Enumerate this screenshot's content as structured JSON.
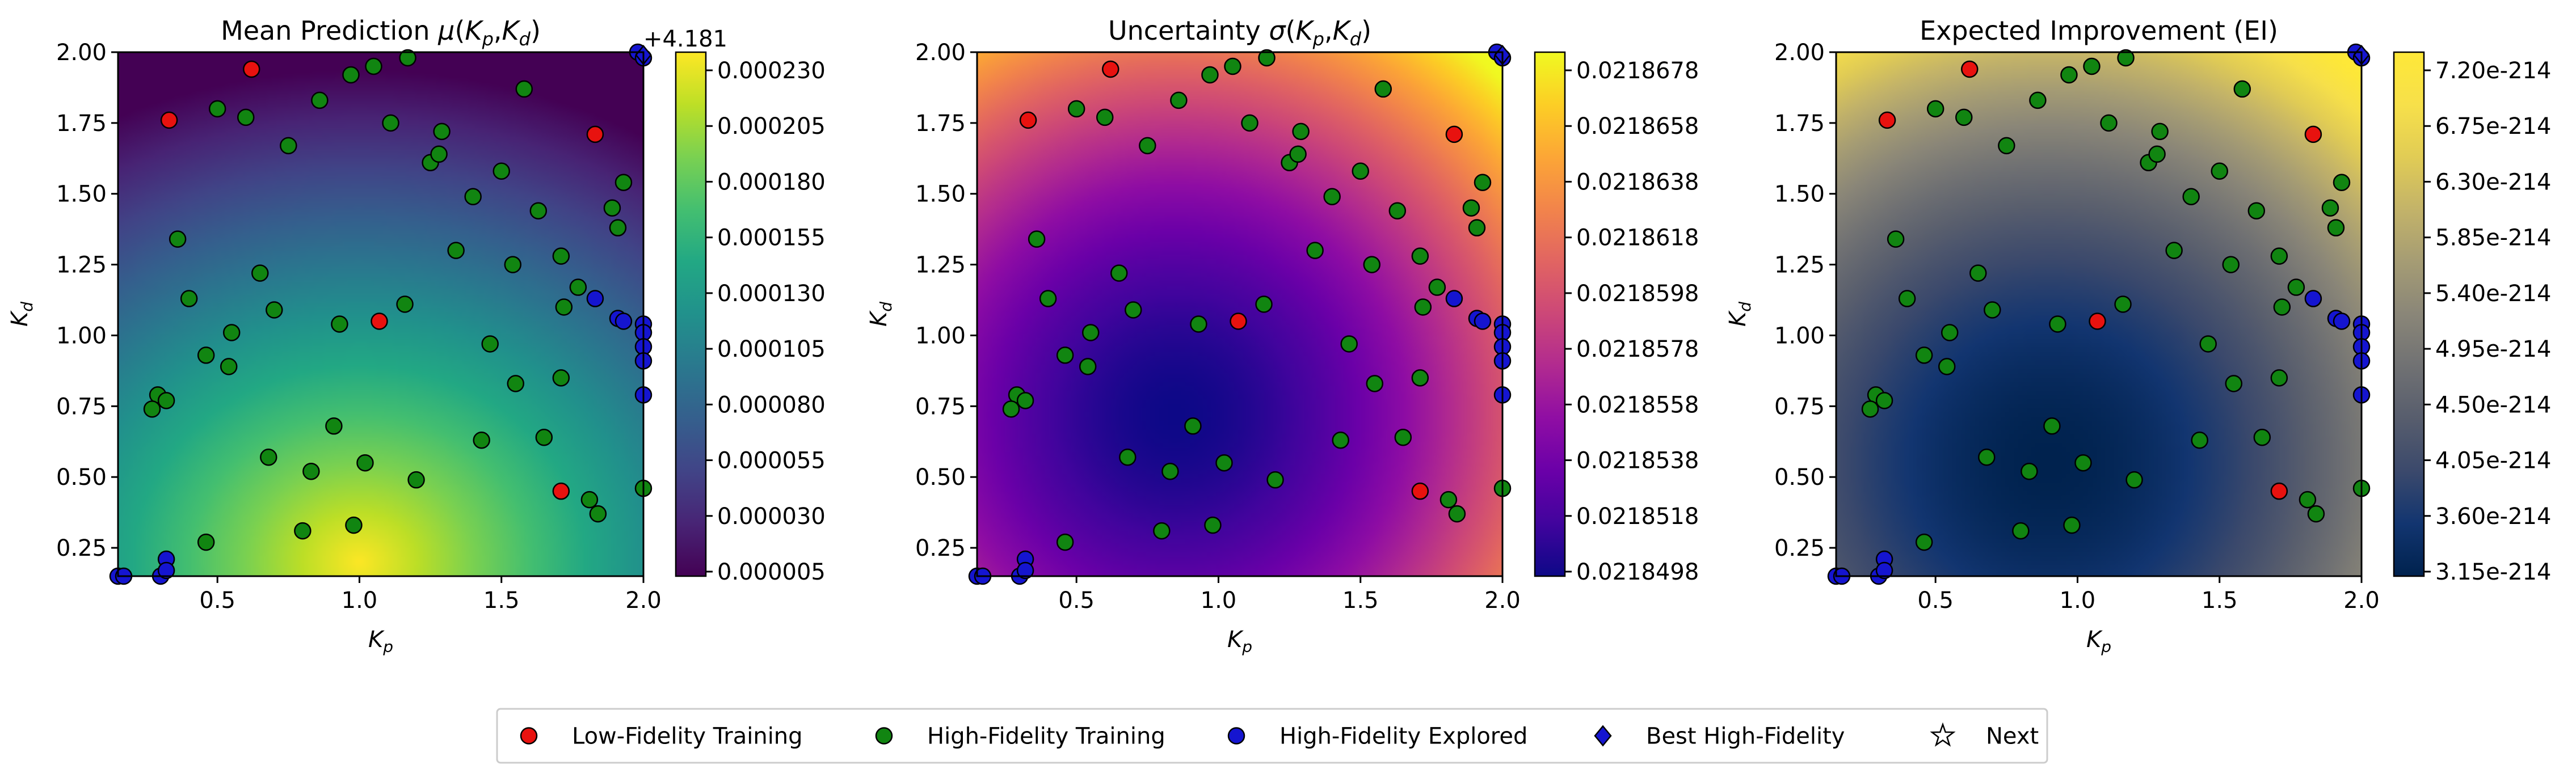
{
  "chart_data": [
    {
      "type": "heatmap",
      "title": "Mean Prediction μ(Kₚ,K_d)",
      "title_main": "Mean Prediction ",
      "title_math": "μ(Kp,Kd)",
      "xlabel": "Kp",
      "ylabel": "Kd",
      "xlim": [
        0.15,
        2.0
      ],
      "ylim": [
        0.15,
        2.0
      ],
      "xticks": [
        "0.5",
        "1.0",
        "1.5",
        "2.0"
      ],
      "yticks": [
        "0.25",
        "0.50",
        "0.75",
        "1.00",
        "1.25",
        "1.50",
        "1.75",
        "2.00"
      ],
      "colormap": "viridis",
      "colorbar_offset": "+4.181",
      "colorbar_ticks": [
        "0.000005",
        "0.000030",
        "0.000055",
        "0.000080",
        "0.000105",
        "0.000130",
        "0.000155",
        "0.000180",
        "0.000205",
        "0.000230"
      ],
      "grid": false
    },
    {
      "type": "heatmap",
      "title": "Uncertainty σ(Kₚ,K_d)",
      "title_main": "Uncertainty ",
      "title_math": "σ(Kp,Kd)",
      "xlabel": "Kp",
      "ylabel": "Kd",
      "xlim": [
        0.15,
        2.0
      ],
      "ylim": [
        0.15,
        2.0
      ],
      "xticks": [
        "0.5",
        "1.0",
        "1.5",
        "2.0"
      ],
      "yticks": [
        "0.25",
        "0.50",
        "0.75",
        "1.00",
        "1.25",
        "1.50",
        "1.75",
        "2.00"
      ],
      "colormap": "plasma",
      "colorbar_ticks": [
        "0.0218498",
        "0.0218518",
        "0.0218538",
        "0.0218558",
        "0.0218578",
        "0.0218598",
        "0.0218618",
        "0.0218638",
        "0.0218658",
        "0.0218678"
      ],
      "grid": false
    },
    {
      "type": "heatmap",
      "title": "Expected Improvement (EI)",
      "title_main": "Expected Improvement (EI)",
      "title_math": "",
      "xlabel": "Kp",
      "ylabel": "Kd",
      "xlim": [
        0.15,
        2.0
      ],
      "ylim": [
        0.15,
        2.0
      ],
      "xticks": [
        "0.5",
        "1.0",
        "1.5",
        "2.0"
      ],
      "yticks": [
        "0.25",
        "0.50",
        "0.75",
        "1.00",
        "1.25",
        "1.50",
        "1.75",
        "2.00"
      ],
      "colormap": "cividis",
      "colorbar_ticks": [
        "3.15e-214",
        "3.60e-214",
        "4.05e-214",
        "4.50e-214",
        "4.95e-214",
        "5.40e-214",
        "5.85e-214",
        "6.30e-214",
        "6.75e-214",
        "7.20e-214"
      ],
      "grid": false
    }
  ],
  "points": {
    "low_fidelity": [
      [
        0.62,
        1.94
      ],
      [
        0.33,
        1.76
      ],
      [
        1.07,
        1.05
      ],
      [
        1.83,
        1.71
      ],
      [
        1.71,
        0.45
      ]
    ],
    "high_fidelity": [
      [
        0.5,
        1.8
      ],
      [
        0.6,
        1.77
      ],
      [
        0.75,
        1.67
      ],
      [
        0.86,
        1.83
      ],
      [
        0.97,
        1.92
      ],
      [
        1.05,
        1.95
      ],
      [
        1.17,
        1.98
      ],
      [
        1.11,
        1.75
      ],
      [
        1.29,
        1.72
      ],
      [
        1.25,
        1.61
      ],
      [
        1.28,
        1.64
      ],
      [
        1.58,
        1.87
      ],
      [
        1.5,
        1.58
      ],
      [
        1.63,
        1.44
      ],
      [
        1.4,
        1.49
      ],
      [
        1.93,
        1.54
      ],
      [
        1.89,
        1.45
      ],
      [
        1.91,
        1.38
      ],
      [
        1.34,
        1.3
      ],
      [
        1.54,
        1.25
      ],
      [
        1.71,
        1.28
      ],
      [
        1.77,
        1.17
      ],
      [
        1.72,
        1.1
      ],
      [
        1.16,
        1.11
      ],
      [
        0.93,
        1.04
      ],
      [
        0.36,
        1.34
      ],
      [
        0.4,
        1.13
      ],
      [
        0.65,
        1.22
      ],
      [
        0.7,
        1.09
      ],
      [
        1.46,
        0.97
      ],
      [
        0.55,
        1.01
      ],
      [
        0.46,
        0.93
      ],
      [
        0.54,
        0.89
      ],
      [
        0.29,
        0.79
      ],
      [
        0.32,
        0.77
      ],
      [
        0.27,
        0.74
      ],
      [
        1.55,
        0.83
      ],
      [
        1.71,
        0.85
      ],
      [
        0.91,
        0.68
      ],
      [
        0.68,
        0.57
      ],
      [
        1.43,
        0.63
      ],
      [
        1.65,
        0.64
      ],
      [
        0.83,
        0.52
      ],
      [
        1.02,
        0.55
      ],
      [
        1.2,
        0.49
      ],
      [
        0.8,
        0.31
      ],
      [
        0.98,
        0.33
      ],
      [
        0.46,
        0.27
      ],
      [
        1.81,
        0.42
      ],
      [
        1.84,
        0.37
      ],
      [
        2.0,
        0.46
      ]
    ],
    "high_fidelity_explored": [
      [
        0.15,
        0.15
      ],
      [
        0.17,
        0.15
      ],
      [
        0.3,
        0.15
      ],
      [
        0.32,
        0.21
      ],
      [
        0.32,
        0.17
      ],
      [
        1.83,
        1.13
      ],
      [
        1.91,
        1.06
      ],
      [
        1.93,
        1.05
      ],
      [
        2.0,
        1.04
      ],
      [
        2.0,
        1.01
      ],
      [
        2.0,
        0.96
      ],
      [
        2.0,
        0.91
      ],
      [
        2.0,
        0.79
      ],
      [
        1.98,
        2.0
      ],
      [
        2.0,
        1.98
      ]
    ],
    "best_high_fidelity": [
      2.0,
      1.99
    ],
    "next": [
      1.99,
      2.0
    ]
  },
  "legend": {
    "items": [
      {
        "label": "Low-Fidelity Training",
        "marker": "circle",
        "color": "#e8120f"
      },
      {
        "label": "High-Fidelity Training",
        "marker": "circle",
        "color": "#118511"
      },
      {
        "label": "High-Fidelity Explored",
        "marker": "circle",
        "color": "#1515d0"
      },
      {
        "label": "Best High-Fidelity",
        "marker": "diamond",
        "color": "#1515d0"
      },
      {
        "label": "Next",
        "marker": "star",
        "color": "#ffffff"
      }
    ],
    "placement": "bottom-center"
  }
}
